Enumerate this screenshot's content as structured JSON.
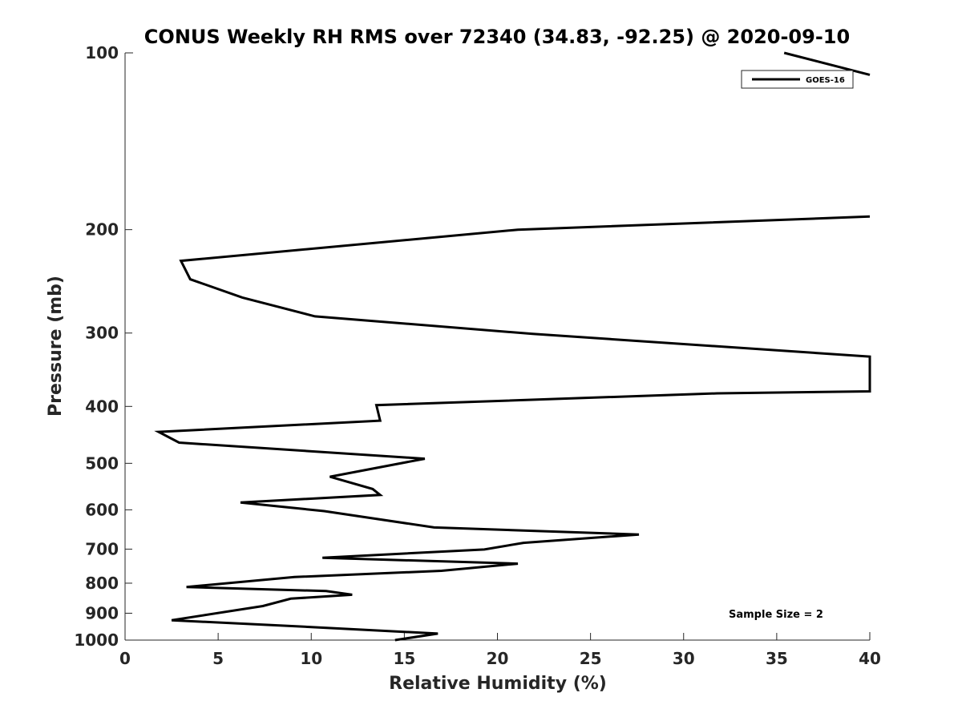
{
  "chart_data": {
    "type": "line",
    "title": "CONUS Weekly RH RMS over 72340 (34.83, -92.25) @ 2020-09-10",
    "xlabel": "Relative Humidity (%)",
    "ylabel": "Pressure (mb)",
    "xlim": [
      0,
      40
    ],
    "ylim": [
      100,
      1000
    ],
    "y_scale": "log",
    "y_reversed": true,
    "grid": false,
    "legend_position": "top-right",
    "x_ticks": [
      0,
      5,
      10,
      15,
      20,
      25,
      30,
      35,
      40
    ],
    "y_ticks": [
      100,
      200,
      300,
      400,
      500,
      600,
      700,
      800,
      900,
      1000
    ],
    "annotation": "Sample Size = 2",
    "series": [
      {
        "name": "GOES-16",
        "color": "#000000",
        "points": [
          [
            14.5,
            1000
          ],
          [
            16.8,
            975
          ],
          [
            10.0,
            950
          ],
          [
            2.5,
            925
          ],
          [
            7.4,
            875
          ],
          [
            8.9,
            850
          ],
          [
            12.2,
            837
          ],
          [
            10.8,
            825
          ],
          [
            3.3,
            812
          ],
          [
            9.1,
            781
          ],
          [
            17.0,
            762
          ],
          [
            21.1,
            741
          ],
          [
            10.6,
            724
          ],
          [
            19.3,
            701
          ],
          [
            21.4,
            683
          ],
          [
            27.6,
            661
          ],
          [
            16.6,
            643
          ],
          [
            10.7,
            603
          ],
          [
            6.2,
            583
          ],
          [
            13.7,
            566
          ],
          [
            13.3,
            553
          ],
          [
            11.0,
            527
          ],
          [
            16.1,
            491
          ],
          [
            2.9,
            461
          ],
          [
            1.8,
            442
          ],
          [
            13.7,
            423
          ],
          [
            13.5,
            398
          ],
          [
            31.8,
            380
          ],
          [
            40.0,
            377
          ],
          [
            40.0,
            329
          ],
          [
            21.9,
            301
          ],
          [
            10.2,
            281
          ],
          [
            6.3,
            261
          ],
          [
            3.5,
            243
          ],
          [
            3.0,
            226
          ],
          [
            21.1,
            200
          ],
          [
            40.0,
            190
          ]
        ],
        "points_upper": [
          [
            35.4,
            100
          ],
          [
            40.0,
            109
          ]
        ]
      }
    ]
  }
}
